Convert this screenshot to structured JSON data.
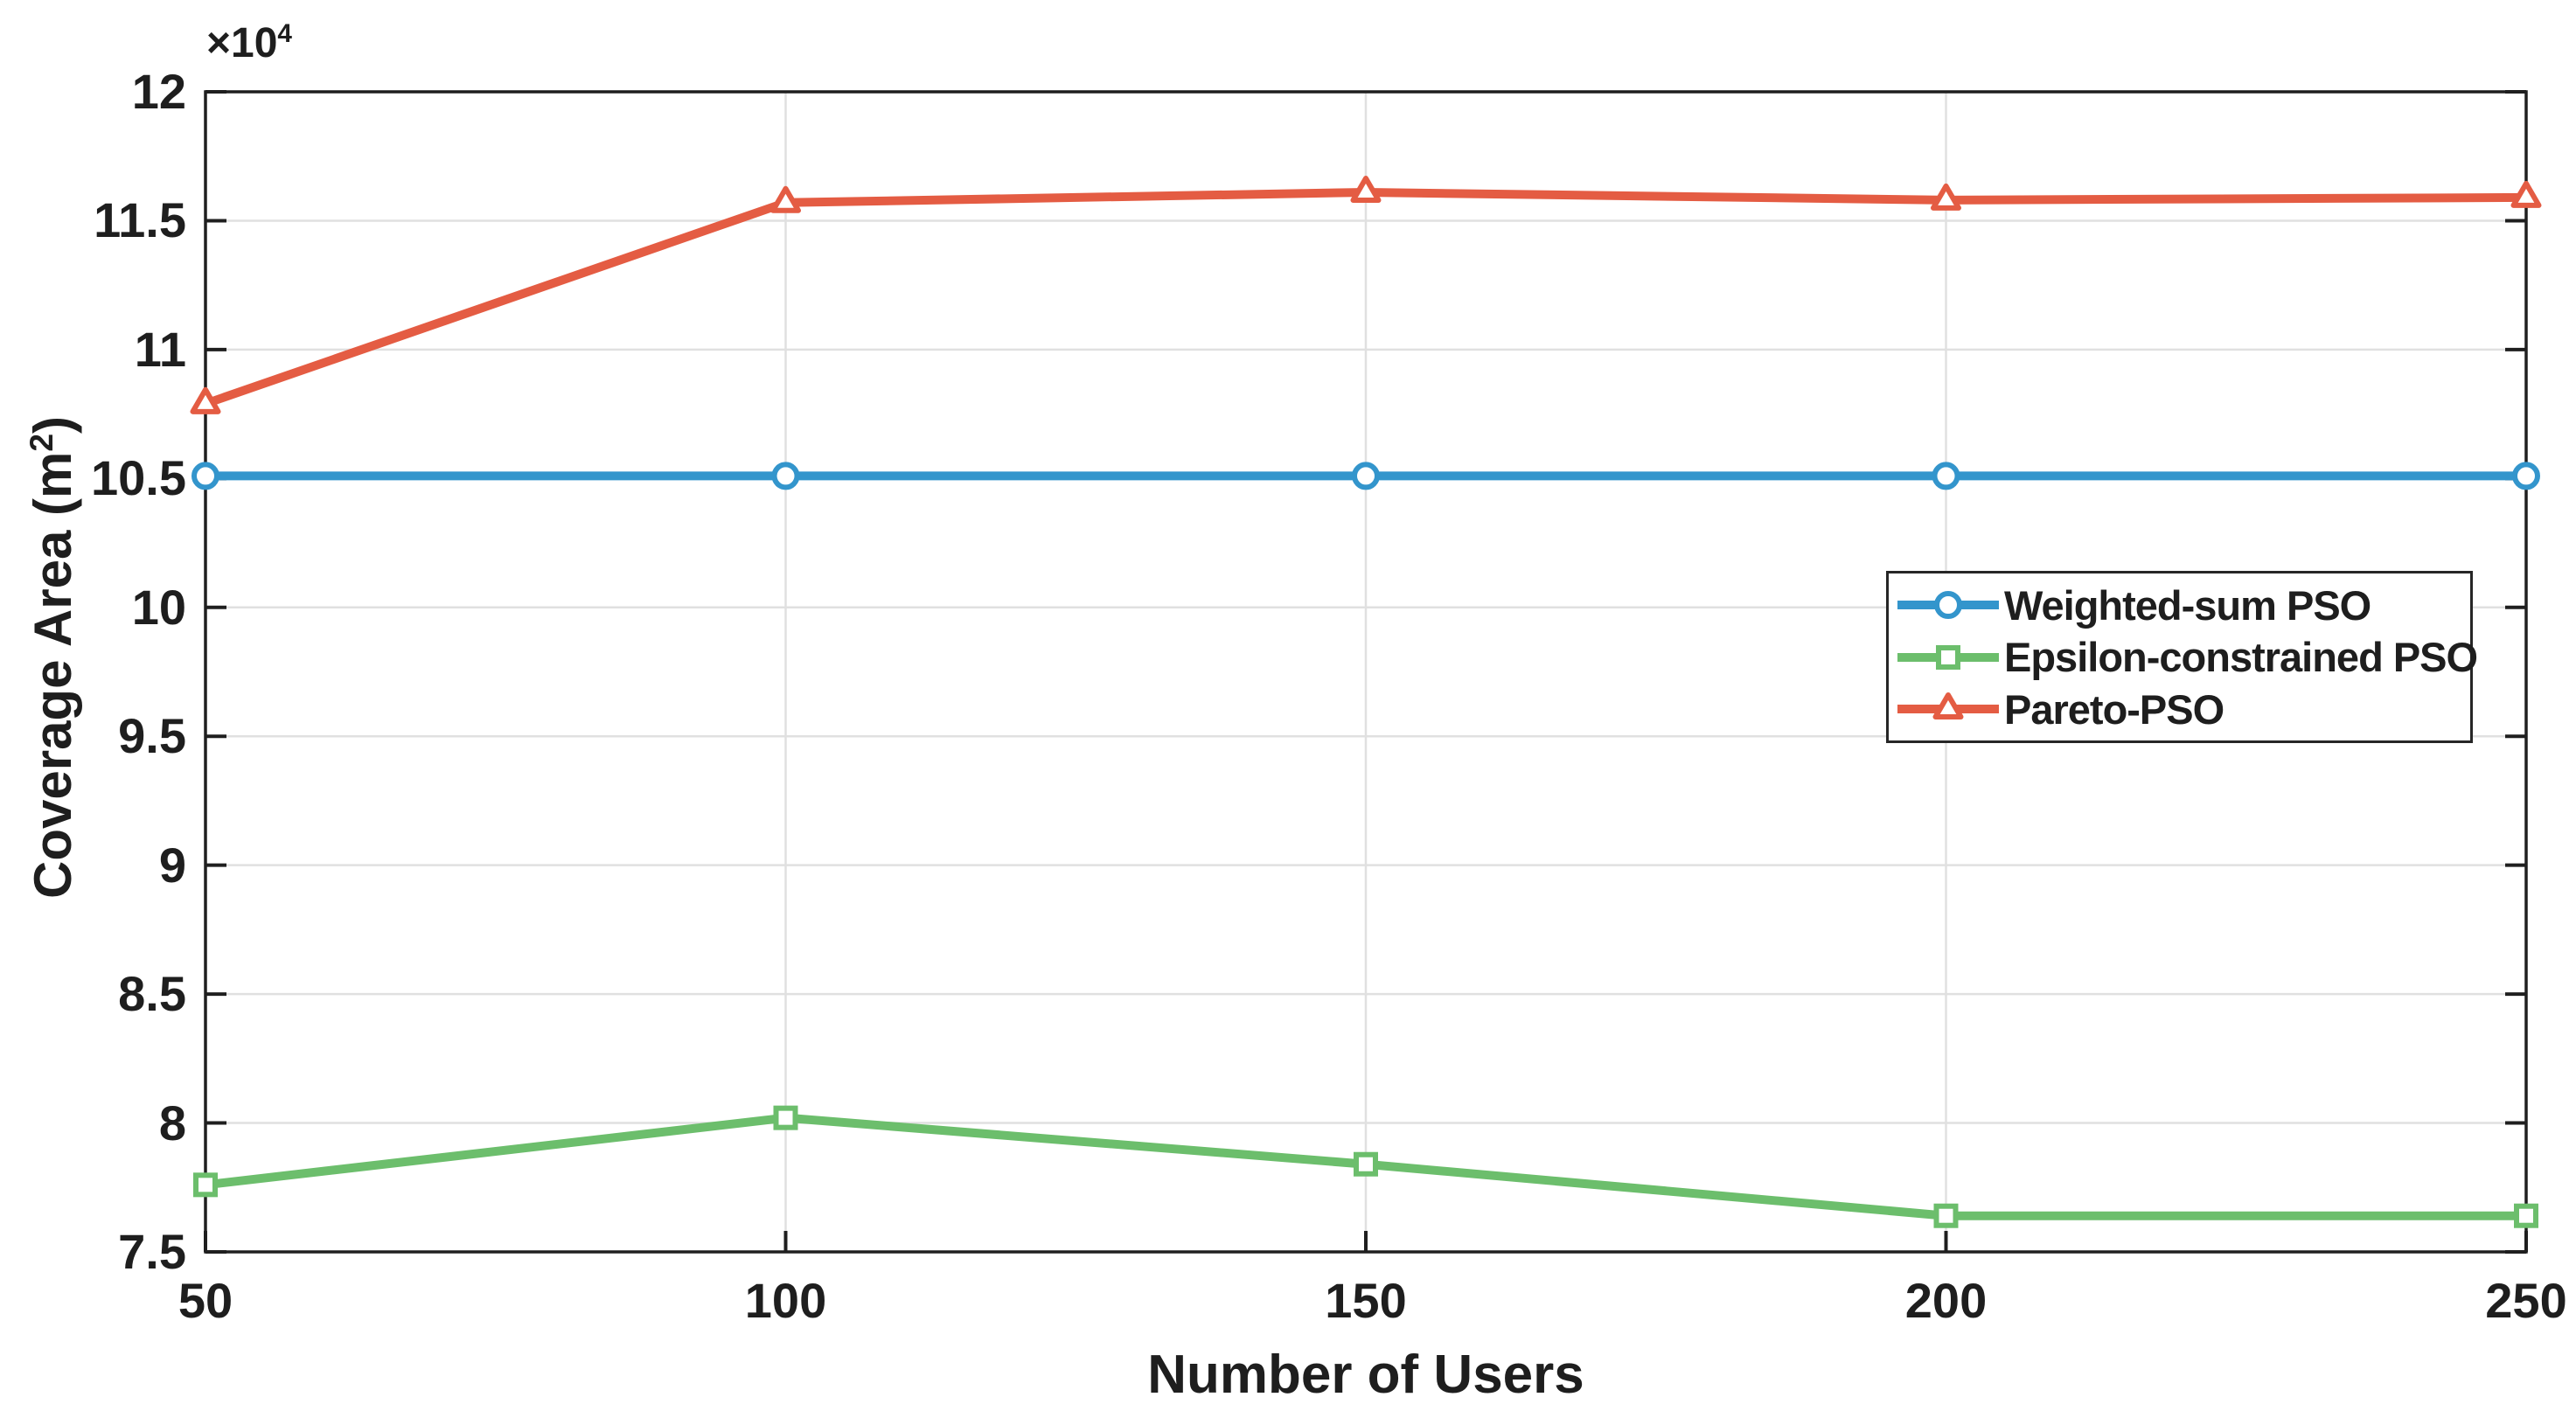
{
  "chart_data": {
    "type": "line",
    "title": "",
    "xlabel": "Number of Users",
    "ylabel": "Coverage Area (m²)",
    "ylabel_parts": {
      "prefix": "Coverage Area (m",
      "sup": "2",
      "suffix": ")"
    },
    "y_axis_multiplier": {
      "prefix": "×10",
      "sup": "4"
    },
    "xlim": [
      50,
      250
    ],
    "ylim": [
      7.5,
      12
    ],
    "x": [
      50,
      100,
      150,
      200,
      250
    ],
    "x_tick_labels": [
      "50",
      "100",
      "150",
      "200",
      "250"
    ],
    "y_ticks": [
      7.5,
      8,
      8.5,
      9,
      9.5,
      10,
      10.5,
      11,
      11.5,
      12
    ],
    "y_tick_labels": [
      "7.5",
      "8",
      "8.5",
      "9",
      "9.5",
      "10",
      "10.5",
      "11",
      "11.5",
      "12"
    ],
    "grid": true,
    "legend_position": "middle-right",
    "series": [
      {
        "name": "Weighted-sum PSO",
        "marker": "circle",
        "color": "#3395CC",
        "values": [
          10.51,
          10.51,
          10.51,
          10.51,
          10.51
        ]
      },
      {
        "name": "Epsilon-constrained PSO",
        "marker": "square",
        "color": "#6CBE6C",
        "values": [
          7.76,
          8.02,
          7.84,
          7.64,
          7.64
        ]
      },
      {
        "name": "Pareto-PSO",
        "marker": "triangle",
        "color": "#E45C43",
        "values": [
          10.79,
          11.57,
          11.61,
          11.58,
          11.59
        ]
      }
    ],
    "colors": {
      "axis": "#1F1F1F",
      "grid": "#E0E0E0",
      "text": "#1E1E1E",
      "background": "#FFFFFF"
    }
  }
}
